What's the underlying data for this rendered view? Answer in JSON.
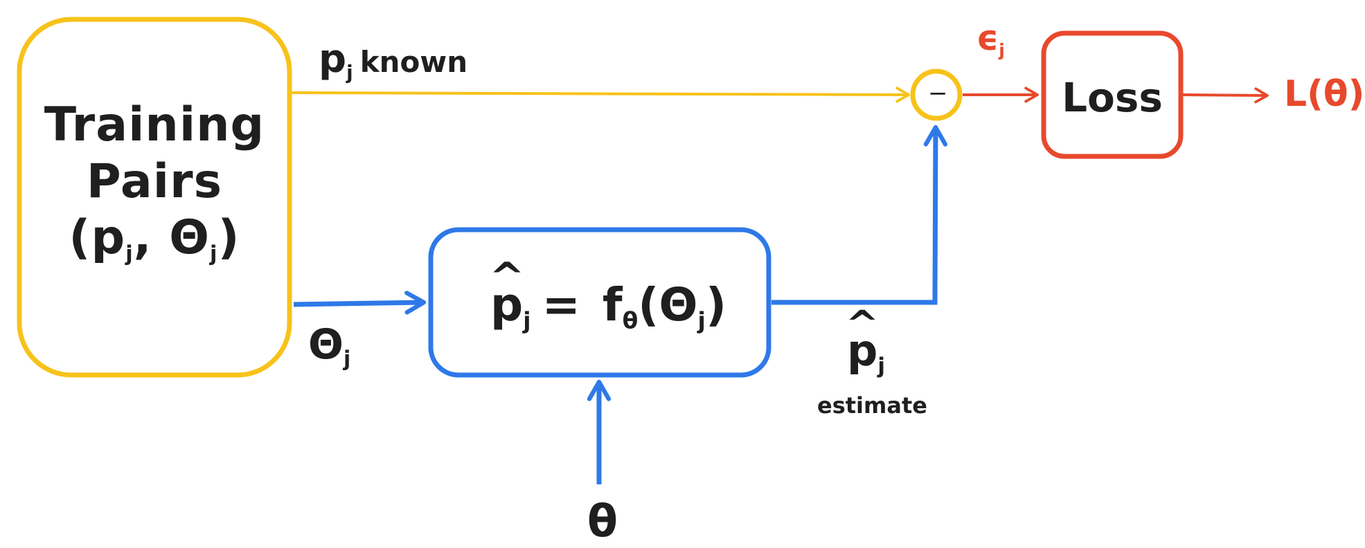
{
  "colors": {
    "yellow": "#f7c21a",
    "blue": "#2e79e8",
    "red": "#e8492c",
    "text": "#1f1f1f"
  },
  "training": {
    "line1": "Training",
    "line2": "Pairs",
    "open": "(p",
    "sub_j": "j",
    "mid": ", Θ",
    "sub_j2": "j",
    "close": ")"
  },
  "known_edge": {
    "p": "p",
    "sub": "j",
    "text": "known"
  },
  "theta_edge": {
    "symbol": "Θ",
    "sub": "j"
  },
  "model": {
    "p": "p",
    "sub_j": "j",
    "equals": "=",
    "f": "f",
    "sub_theta": "θ",
    "open": "(Θ",
    "sub_j2": "j",
    "close": ")"
  },
  "estimate_edge": {
    "p": "p",
    "sub": "j",
    "word": "estimate"
  },
  "theta_input": "θ",
  "error": {
    "symbol": "ϵ",
    "sub": "j"
  },
  "subtract_symbol": "−",
  "loss_box": "Loss",
  "output": "L(θ)"
}
